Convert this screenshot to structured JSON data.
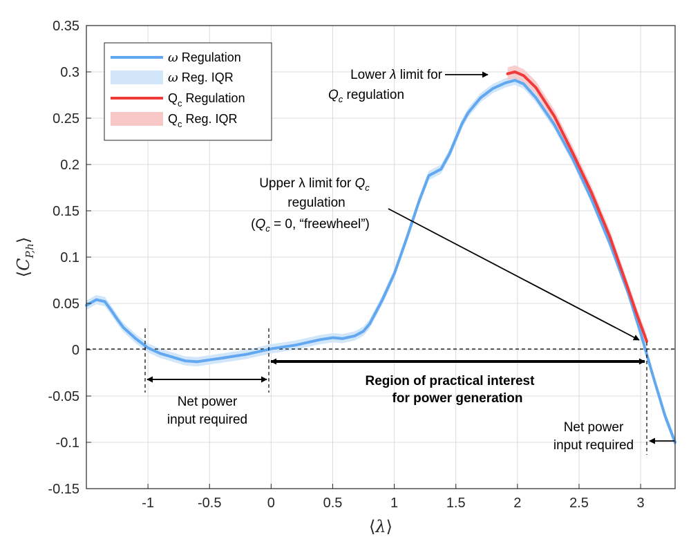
{
  "chart_data": {
    "type": "line",
    "xlabel": "⟨λ⟩",
    "ylabel": "⟨C_P,h⟩",
    "xlim": [
      -1.5,
      3.28
    ],
    "ylim": [
      -0.15,
      0.35
    ],
    "grid": true,
    "xticks": [
      -1,
      -0.5,
      0,
      0.5,
      1,
      1.5,
      2,
      2.5,
      3
    ],
    "xtick_labels": [
      "-1",
      "-0.5",
      "0",
      "0.5",
      "1",
      "1.5",
      "2",
      "2.5",
      "3"
    ],
    "yticks": [
      -0.15,
      -0.1,
      -0.05,
      0,
      0.05,
      0.1,
      0.15,
      0.2,
      0.25,
      0.3,
      0.35
    ],
    "ytick_labels": [
      "-0.15",
      "-0.1",
      "-0.05",
      "0",
      "0.05",
      "0.1",
      "0.15",
      "0.2",
      "0.25",
      "0.3",
      "0.35"
    ],
    "legend_position": "top-left",
    "legend": [
      {
        "key": "w_reg",
        "prefix": "ω",
        "text": " Regulation"
      },
      {
        "key": "w_iqr",
        "prefix": "ω",
        "text": " Reg. IQR"
      },
      {
        "key": "q_reg",
        "prefix": "Q",
        "sub": "c",
        "text": " Regulation"
      },
      {
        "key": "q_iqr",
        "prefix": "Q",
        "sub": "c",
        "text": " Reg. IQR"
      }
    ],
    "series": [
      {
        "name": "ω Regulation",
        "color": "#62a8f0",
        "iqr_color": "#d2e6fa",
        "x": [
          -1.5,
          -1.42,
          -1.35,
          -1.3,
          -1.25,
          -1.2,
          -1.1,
          -1.0,
          -0.9,
          -0.8,
          -0.7,
          -0.6,
          -0.5,
          -0.4,
          -0.3,
          -0.2,
          -0.1,
          0.0,
          0.1,
          0.2,
          0.3,
          0.4,
          0.5,
          0.58,
          0.68,
          0.75,
          0.8,
          0.9,
          1.0,
          1.1,
          1.2,
          1.28,
          1.38,
          1.45,
          1.5,
          1.55,
          1.6,
          1.7,
          1.8,
          1.9,
          1.98,
          2.05,
          2.15,
          2.3,
          2.45,
          2.6,
          2.75,
          2.9,
          3.0,
          3.1,
          3.2,
          3.28
        ],
        "y": [
          0.048,
          0.054,
          0.052,
          0.043,
          0.033,
          0.024,
          0.012,
          0.002,
          -0.004,
          -0.008,
          -0.012,
          -0.013,
          -0.011,
          -0.009,
          -0.007,
          -0.005,
          -0.002,
          0.001,
          0.003,
          0.005,
          0.008,
          0.011,
          0.013,
          0.012,
          0.015,
          0.02,
          0.028,
          0.053,
          0.082,
          0.12,
          0.16,
          0.188,
          0.195,
          0.212,
          0.228,
          0.244,
          0.256,
          0.272,
          0.282,
          0.288,
          0.291,
          0.287,
          0.272,
          0.243,
          0.206,
          0.163,
          0.115,
          0.061,
          0.018,
          -0.028,
          -0.072,
          -0.1
        ],
        "iqr_halfwidth": 0.005
      },
      {
        "name": "Q_c Regulation",
        "color": "#f03a3a",
        "iqr_color": "#f7c6c6",
        "x": [
          1.92,
          1.98,
          2.05,
          2.15,
          2.3,
          2.45,
          2.6,
          2.75,
          2.9,
          2.97,
          3.05
        ],
        "y": [
          0.298,
          0.3,
          0.296,
          0.283,
          0.252,
          0.212,
          0.17,
          0.122,
          0.065,
          0.038,
          0.009
        ],
        "iqr_halfwidth": 0.007
      }
    ],
    "annotations": {
      "lower_limit": {
        "line1_a": "Lower ",
        "line1_lambda": "λ",
        "line1_b": " limit for",
        "line2_q": "Q",
        "line2_sub": "c",
        "line2_b": " regulation"
      },
      "upper_limit": {
        "line1_a": "Upper λ limit for ",
        "line1_q": "Q",
        "line1_sub": "c",
        "line2": "regulation",
        "line3_a": "(",
        "line3_q": "Q",
        "line3_sub": "c",
        "line3_b": " = 0, “freewheel”)"
      },
      "region_line1": "Region of practical interest",
      "region_line2": "for power generation",
      "net_left_line1": "Net power",
      "net_left_line2": "input required",
      "net_right_line1": "Net power",
      "net_right_line2": "input required"
    }
  }
}
